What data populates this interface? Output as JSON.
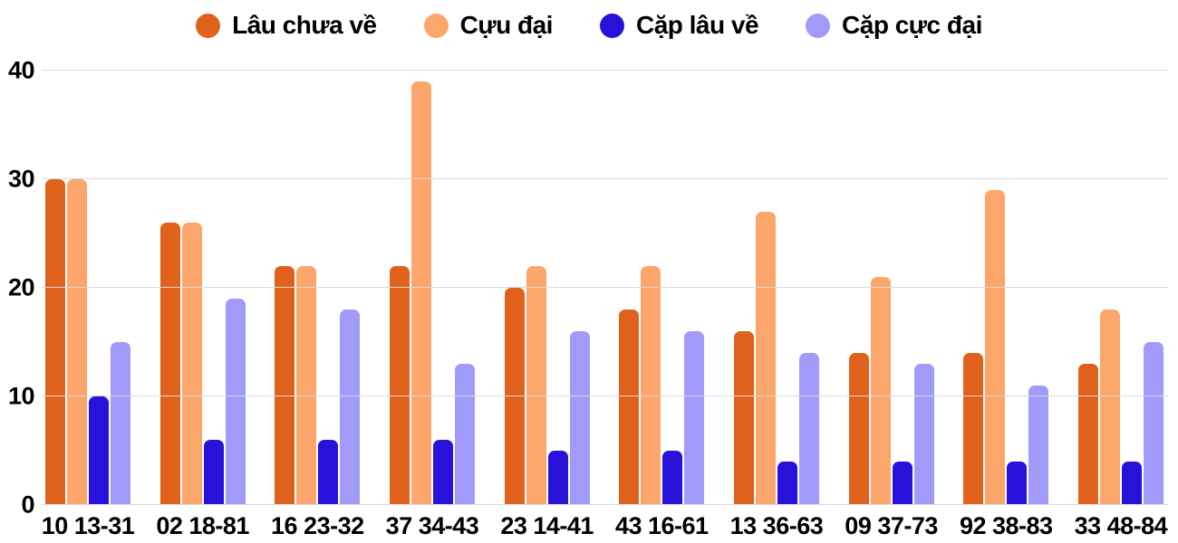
{
  "chart_data": {
    "type": "bar",
    "title": "",
    "xlabel": "",
    "ylabel": "",
    "categories": [
      "10 13-31",
      "02 18-81",
      "16 23-32",
      "37 34-43",
      "23 14-41",
      "43 16-61",
      "13 36-63",
      "09 37-73",
      "92 38-83",
      "33 48-84"
    ],
    "series": [
      {
        "name": "Lâu chưa về",
        "color": "#e0611b",
        "values": [
          30,
          26,
          22,
          22,
          20,
          18,
          16,
          14,
          14,
          13
        ]
      },
      {
        "name": "Cựu đại",
        "color": "#fda66b",
        "values": [
          30,
          26,
          22,
          39,
          22,
          22,
          27,
          21,
          29,
          18
        ]
      },
      {
        "name": "Cặp lâu về",
        "color": "#2812da",
        "values": [
          10,
          6,
          6,
          6,
          5,
          5,
          4,
          4,
          4,
          4
        ]
      },
      {
        "name": "Cặp cực đại",
        "color": "#a29af9",
        "values": [
          15,
          19,
          18,
          13,
          16,
          16,
          14,
          13,
          11,
          15
        ]
      }
    ],
    "ylim": [
      0,
      40
    ],
    "yticks": [
      0,
      10,
      20,
      30,
      40
    ],
    "grid": true,
    "legend_position": "top",
    "gridline_color": "#dadada",
    "text_color": "#000000",
    "background": "#ffffff"
  }
}
